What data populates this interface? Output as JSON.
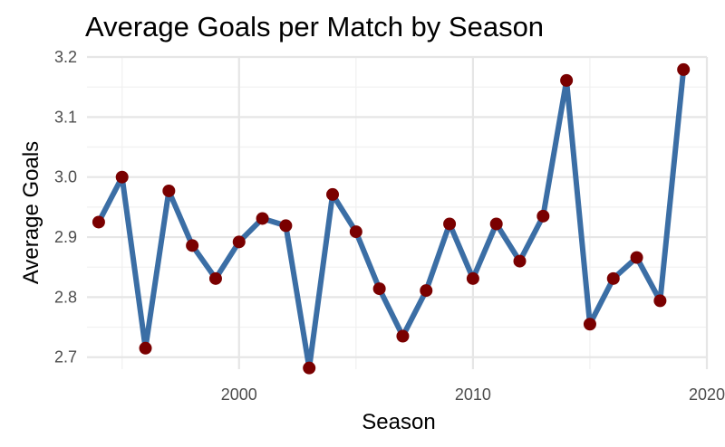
{
  "chart_data": {
    "type": "line",
    "title": "Average Goals per Match by Season",
    "xlabel": "Season",
    "ylabel": "Average Goals",
    "xlim": [
      1993.5,
      2020
    ],
    "ylim": [
      2.68,
      3.2
    ],
    "x_ticks": [
      2000,
      2010,
      2020
    ],
    "y_ticks": [
      2.7,
      2.8,
      2.9,
      3.0,
      3.1,
      3.2
    ],
    "y_tick_labels": [
      "2.7",
      "2.8",
      "2.9",
      "3.0",
      "3.1",
      "3.2"
    ],
    "grid": true,
    "legend": "none",
    "line_color": "#3b6ea5",
    "point_color": "#7a0000",
    "series": [
      {
        "x": [
          1994,
          1995,
          1996,
          1997,
          1998,
          1999,
          2000,
          2001,
          2002,
          2003,
          2004,
          2005,
          2006,
          2007,
          2008,
          2009,
          2010,
          2011,
          2012,
          2013,
          2014,
          2015,
          2016,
          2017,
          2018,
          2019
        ],
        "values": [
          2.925,
          3.0,
          2.715,
          2.977,
          2.886,
          2.831,
          2.892,
          2.931,
          2.919,
          2.682,
          2.971,
          2.909,
          2.814,
          2.735,
          2.811,
          2.922,
          2.831,
          2.922,
          2.86,
          2.935,
          3.161,
          2.755,
          2.831,
          2.866,
          2.794,
          3.179
        ]
      }
    ]
  }
}
